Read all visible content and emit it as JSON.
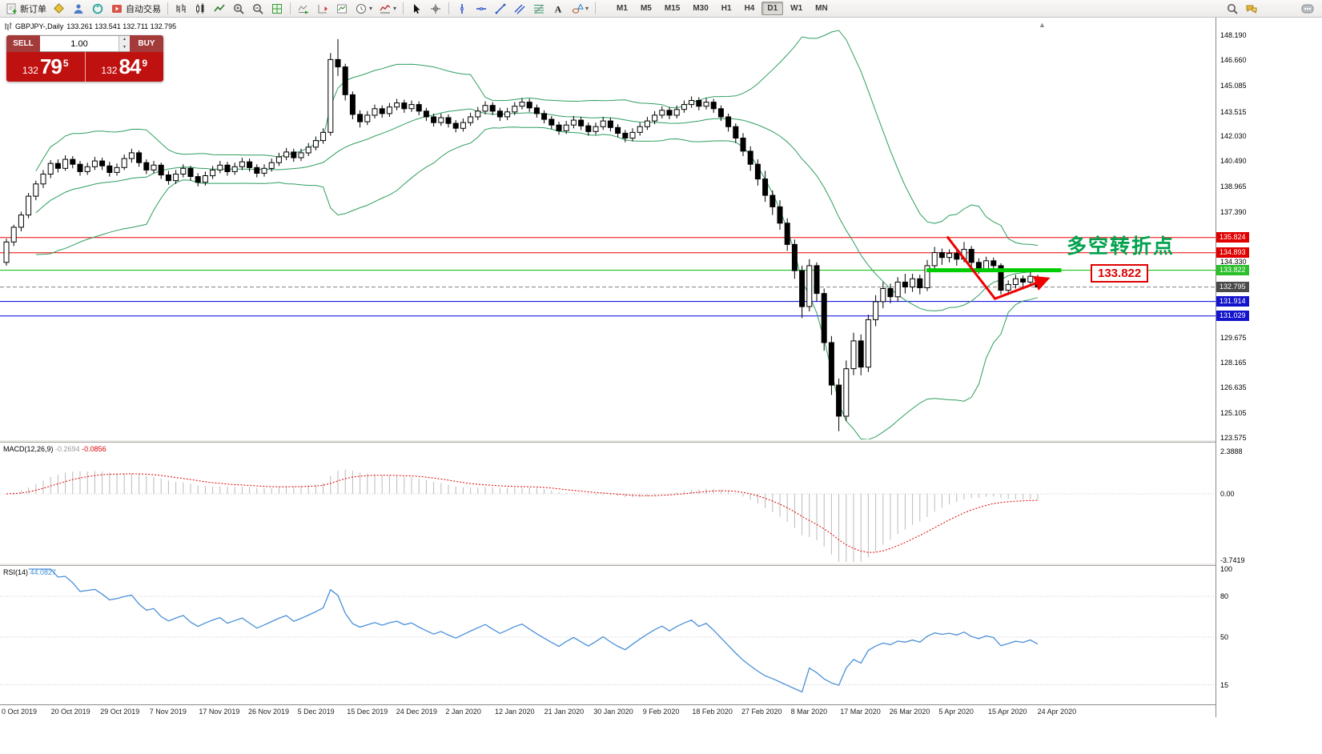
{
  "toolbar": {
    "new_order_label": "新订单",
    "autotrading_label": "自动交易",
    "timeframes": [
      "M1",
      "M5",
      "M15",
      "M30",
      "H1",
      "H4",
      "D1",
      "W1",
      "MN"
    ],
    "active_timeframe": "D1"
  },
  "chart_header": {
    "symbol": "GBPJPY-,Daily",
    "ohlc": "133.261 133.541 132.711 132.795"
  },
  "quote_panel": {
    "sell_label": "SELL",
    "buy_label": "BUY",
    "volume": "1.00",
    "sell_price_prefix": "132",
    "sell_price_big": "79",
    "sell_price_sup": "5",
    "buy_price_prefix": "132",
    "buy_price_big": "84",
    "buy_price_sup": "9"
  },
  "annotations": {
    "turning_point_text": "多空转折点",
    "price_box_label": "133.822",
    "annotation_green": "#00a24e",
    "arrow_red": "#ee0000"
  },
  "price_axis": {
    "ticks": [
      "148.190",
      "146.660",
      "145.085",
      "143.515",
      "142.030",
      "140.490",
      "138.965",
      "137.390",
      "134.330",
      "129.675",
      "128.165",
      "126.635",
      "125.105",
      "123.575"
    ],
    "badges": [
      {
        "value": "135.824",
        "price": 135.824,
        "bg": "#e00000"
      },
      {
        "value": "134.893",
        "price": 134.893,
        "bg": "#e00000"
      },
      {
        "value": "133.822",
        "price": 133.822,
        "bg": "#2bbf2b"
      },
      {
        "value": "132.795",
        "price": 132.795,
        "bg": "#4a4a4a"
      },
      {
        "value": "131.914",
        "price": 131.914,
        "bg": "#1414cc"
      },
      {
        "value": "131.029",
        "price": 131.029,
        "bg": "#1414cc"
      }
    ]
  },
  "macd_panel": {
    "label": "MACD(12,26,9)",
    "value1": "-0.2694",
    "value2": "-0.0856",
    "axis": [
      "2.3888",
      "0.00",
      "-3.7419"
    ]
  },
  "rsi_panel": {
    "label": "RSI(14)",
    "value": "44.0827",
    "axis": [
      "100",
      "80",
      "50",
      "15"
    ],
    "levels": [
      80,
      50,
      15
    ]
  },
  "time_axis": {
    "labels": [
      "0 Oct 2019",
      "20 Oct 2019",
      "29 Oct 2019",
      "7 Nov 2019",
      "17 Nov 2019",
      "26 Nov 2019",
      "5 Dec 2019",
      "15 Dec 2019",
      "24 Dec 2019",
      "2 Jan 2020",
      "12 Jan 2020",
      "21 Jan 2020",
      "30 Jan 2020",
      "9 Feb 2020",
      "18 Feb 2020",
      "27 Feb 2020",
      "8 Mar 2020",
      "17 Mar 2020",
      "26 Mar 2020",
      "5 Apr 2020",
      "15 Apr 2020",
      "24 Apr 2020"
    ]
  },
  "chart_data": {
    "type": "candlestick",
    "symbol": "GBPJPY",
    "timeframe": "Daily",
    "ylim": [
      123.575,
      148.19
    ],
    "indicators": {
      "bollinger": {
        "period": 20,
        "deviation": 2,
        "color": "#2e9e5e"
      },
      "macd": {
        "fast": 12,
        "slow": 26,
        "signal": 9,
        "hist_color": "#bbbbbb",
        "signal_color": "#e00000",
        "range": [
          -3.7419,
          2.3888
        ]
      },
      "rsi": {
        "period": 14,
        "color": "#4a90d9",
        "range": [
          0,
          100
        ]
      }
    },
    "hlines": [
      {
        "price": 135.824,
        "color": "#f00000"
      },
      {
        "price": 134.893,
        "color": "#f00000"
      },
      {
        "price": 133.822,
        "color": "#00bb00"
      },
      {
        "price": 131.914,
        "color": "#0000e0"
      },
      {
        "price": 131.029,
        "color": "#0000e0"
      }
    ],
    "bid_line": 132.795,
    "drawings": {
      "green_segment": {
        "price": 133.822,
        "i1": 124.9,
        "i2": 143.2,
        "color": "#00cc00",
        "width": 5
      },
      "red_zigzag": {
        "color": "#ee0000",
        "width": 3,
        "points": [
          [
            127.7,
            135.88
          ],
          [
            134.2,
            132.08
          ],
          [
            141.3,
            133.3
          ]
        ]
      }
    },
    "ohlc": [
      [
        134.3,
        135.75,
        134.1,
        135.55
      ],
      [
        135.55,
        136.6,
        135.3,
        136.45
      ],
      [
        136.45,
        137.4,
        136.2,
        137.2
      ],
      [
        137.2,
        138.55,
        137.0,
        138.35
      ],
      [
        138.35,
        139.3,
        138.1,
        139.1
      ],
      [
        139.1,
        139.95,
        138.85,
        139.7
      ],
      [
        139.7,
        140.55,
        139.45,
        140.35
      ],
      [
        140.35,
        140.6,
        139.8,
        140.05
      ],
      [
        140.05,
        140.85,
        139.9,
        140.6
      ],
      [
        140.6,
        140.8,
        140.05,
        140.3
      ],
      [
        140.3,
        140.5,
        139.6,
        139.85
      ],
      [
        139.85,
        140.4,
        139.65,
        140.15
      ],
      [
        140.15,
        140.75,
        139.95,
        140.5
      ],
      [
        140.5,
        140.7,
        139.95,
        140.2
      ],
      [
        140.2,
        140.45,
        139.55,
        139.8
      ],
      [
        139.8,
        140.35,
        139.6,
        140.1
      ],
      [
        140.1,
        140.9,
        139.95,
        140.65
      ],
      [
        140.65,
        141.25,
        140.4,
        141.0
      ],
      [
        141.0,
        141.15,
        140.15,
        140.4
      ],
      [
        140.4,
        140.6,
        139.7,
        139.95
      ],
      [
        139.95,
        140.5,
        139.75,
        140.25
      ],
      [
        140.25,
        140.4,
        139.4,
        139.65
      ],
      [
        139.65,
        139.9,
        139.05,
        139.3
      ],
      [
        139.3,
        139.95,
        139.1,
        139.7
      ],
      [
        139.7,
        140.3,
        139.5,
        140.05
      ],
      [
        140.05,
        140.2,
        139.3,
        139.55
      ],
      [
        139.55,
        139.75,
        138.95,
        139.2
      ],
      [
        139.2,
        139.85,
        139.0,
        139.6
      ],
      [
        139.6,
        140.2,
        139.4,
        139.95
      ],
      [
        139.95,
        140.5,
        139.75,
        140.25
      ],
      [
        140.25,
        140.45,
        139.6,
        139.85
      ],
      [
        139.85,
        140.4,
        139.65,
        140.15
      ],
      [
        140.15,
        140.7,
        139.95,
        140.45
      ],
      [
        140.45,
        140.65,
        139.85,
        140.1
      ],
      [
        140.1,
        140.3,
        139.5,
        139.75
      ],
      [
        139.75,
        140.3,
        139.55,
        140.05
      ],
      [
        140.05,
        140.65,
        139.85,
        140.4
      ],
      [
        140.4,
        141.0,
        140.2,
        140.75
      ],
      [
        140.75,
        141.3,
        140.55,
        141.05
      ],
      [
        141.05,
        141.25,
        140.45,
        140.7
      ],
      [
        140.7,
        141.25,
        140.5,
        141.0
      ],
      [
        141.0,
        141.6,
        140.8,
        141.35
      ],
      [
        141.35,
        142.0,
        141.15,
        141.75
      ],
      [
        141.75,
        142.5,
        141.55,
        142.25
      ],
      [
        142.25,
        147.1,
        142.05,
        146.7
      ],
      [
        146.7,
        147.95,
        145.7,
        146.25
      ],
      [
        146.25,
        146.45,
        144.2,
        144.55
      ],
      [
        144.55,
        144.75,
        143.05,
        143.35
      ],
      [
        143.35,
        143.6,
        142.55,
        142.9
      ],
      [
        142.9,
        143.55,
        142.7,
        143.3
      ],
      [
        143.3,
        143.95,
        143.1,
        143.7
      ],
      [
        143.7,
        143.9,
        143.15,
        143.4
      ],
      [
        143.4,
        144.05,
        143.2,
        143.8
      ],
      [
        143.8,
        144.3,
        143.6,
        144.05
      ],
      [
        144.05,
        144.25,
        143.45,
        143.7
      ],
      [
        143.7,
        144.2,
        143.5,
        143.95
      ],
      [
        143.95,
        144.15,
        143.3,
        143.55
      ],
      [
        143.55,
        143.75,
        142.95,
        143.2
      ],
      [
        143.2,
        143.4,
        142.6,
        142.85
      ],
      [
        142.85,
        143.4,
        142.65,
        143.15
      ],
      [
        143.15,
        143.35,
        142.55,
        142.8
      ],
      [
        142.8,
        143.0,
        142.25,
        142.5
      ],
      [
        142.5,
        143.1,
        142.3,
        142.85
      ],
      [
        142.85,
        143.45,
        142.65,
        143.2
      ],
      [
        143.2,
        143.8,
        143.0,
        143.55
      ],
      [
        143.55,
        144.15,
        143.35,
        143.9
      ],
      [
        143.9,
        144.1,
        143.3,
        143.55
      ],
      [
        143.55,
        143.75,
        142.95,
        143.2
      ],
      [
        143.2,
        143.75,
        143.0,
        143.5
      ],
      [
        143.5,
        144.1,
        143.3,
        143.85
      ],
      [
        143.85,
        144.35,
        143.65,
        144.1
      ],
      [
        144.1,
        144.3,
        143.5,
        143.75
      ],
      [
        143.75,
        143.95,
        143.15,
        143.4
      ],
      [
        143.4,
        143.6,
        142.8,
        143.05
      ],
      [
        143.05,
        143.25,
        142.45,
        142.7
      ],
      [
        142.7,
        142.9,
        142.1,
        142.35
      ],
      [
        142.35,
        142.95,
        142.15,
        142.7
      ],
      [
        142.7,
        143.25,
        142.5,
        143.0
      ],
      [
        143.0,
        143.2,
        142.4,
        142.65
      ],
      [
        142.65,
        142.85,
        142.05,
        142.3
      ],
      [
        142.3,
        142.85,
        142.1,
        142.6
      ],
      [
        142.6,
        143.2,
        142.4,
        142.95
      ],
      [
        142.95,
        143.15,
        142.3,
        142.55
      ],
      [
        142.55,
        142.75,
        141.95,
        142.2
      ],
      [
        142.2,
        142.4,
        141.65,
        141.9
      ],
      [
        141.9,
        142.5,
        141.7,
        142.25
      ],
      [
        142.25,
        142.85,
        142.05,
        142.6
      ],
      [
        142.6,
        143.2,
        142.4,
        142.95
      ],
      [
        142.95,
        143.55,
        142.75,
        143.3
      ],
      [
        143.3,
        143.85,
        143.1,
        143.6
      ],
      [
        143.6,
        143.8,
        143.05,
        143.3
      ],
      [
        143.3,
        143.9,
        143.1,
        143.65
      ],
      [
        143.65,
        144.2,
        143.45,
        143.95
      ],
      [
        143.95,
        144.45,
        143.75,
        144.2
      ],
      [
        144.2,
        144.4,
        143.6,
        143.85
      ],
      [
        143.85,
        144.35,
        143.65,
        144.1
      ],
      [
        144.1,
        144.3,
        143.45,
        143.7
      ],
      [
        143.7,
        143.9,
        142.95,
        143.2
      ],
      [
        143.2,
        143.4,
        142.3,
        142.6
      ],
      [
        142.6,
        142.8,
        141.6,
        141.9
      ],
      [
        141.9,
        142.2,
        140.8,
        141.1
      ],
      [
        141.1,
        141.4,
        139.9,
        140.3
      ],
      [
        140.3,
        140.6,
        139.0,
        139.4
      ],
      [
        139.4,
        139.9,
        138.0,
        138.4
      ],
      [
        138.4,
        138.7,
        137.2,
        137.7
      ],
      [
        137.7,
        138.1,
        136.3,
        136.7
      ],
      [
        136.7,
        137.0,
        135.0,
        135.4
      ],
      [
        135.4,
        135.7,
        133.3,
        133.8
      ],
      [
        133.8,
        134.1,
        130.9,
        131.6
      ],
      [
        131.6,
        134.5,
        131.3,
        134.1
      ],
      [
        134.1,
        134.3,
        131.9,
        132.4
      ],
      [
        132.4,
        132.7,
        128.9,
        129.4
      ],
      [
        129.4,
        129.8,
        126.2,
        126.8
      ],
      [
        126.8,
        127.2,
        123.98,
        124.9
      ],
      [
        124.9,
        128.3,
        124.6,
        127.8
      ],
      [
        127.8,
        130.0,
        127.4,
        129.5
      ],
      [
        129.5,
        129.9,
        127.4,
        127.9
      ],
      [
        127.9,
        131.1,
        127.6,
        130.8
      ],
      [
        130.8,
        132.3,
        130.4,
        131.9
      ],
      [
        131.9,
        133.1,
        131.5,
        132.7
      ],
      [
        132.7,
        133.0,
        131.8,
        132.2
      ],
      [
        132.2,
        133.4,
        131.9,
        133.1
      ],
      [
        133.1,
        133.6,
        132.4,
        132.8
      ],
      [
        132.8,
        133.6,
        132.5,
        133.3
      ],
      [
        133.3,
        133.55,
        132.35,
        132.75
      ],
      [
        132.75,
        134.45,
        132.55,
        134.1
      ],
      [
        134.1,
        135.25,
        133.9,
        134.9
      ],
      [
        134.9,
        135.15,
        134.15,
        134.6
      ],
      [
        134.6,
        135.1,
        134.3,
        134.85
      ],
      [
        134.85,
        135.05,
        134.1,
        134.5
      ],
      [
        134.5,
        135.55,
        134.3,
        135.1
      ],
      [
        135.1,
        135.3,
        134.0,
        134.3
      ],
      [
        134.3,
        134.55,
        133.6,
        133.9
      ],
      [
        133.9,
        134.65,
        133.7,
        134.4
      ],
      [
        134.4,
        134.6,
        133.8,
        134.1
      ],
      [
        134.1,
        134.25,
        132.35,
        132.6
      ],
      [
        132.6,
        133.2,
        132.3,
        132.95
      ],
      [
        132.95,
        133.55,
        132.7,
        133.3
      ],
      [
        133.3,
        133.5,
        132.8,
        133.1
      ],
      [
        133.1,
        133.7,
        132.9,
        133.45
      ],
      [
        133.261,
        133.541,
        132.711,
        132.795
      ]
    ]
  }
}
